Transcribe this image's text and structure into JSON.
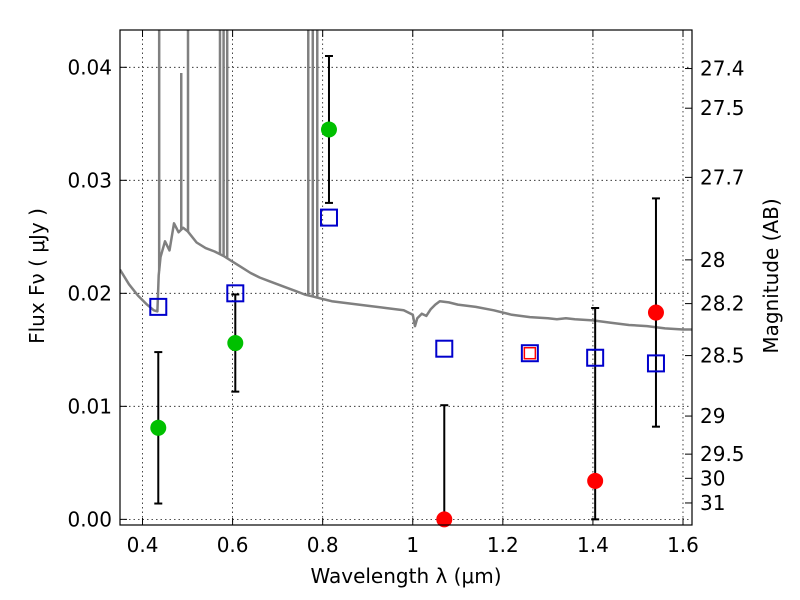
{
  "chart_data": {
    "type": "scatter",
    "xlabel": "Wavelength  λ (μm)",
    "ylabel": "Flux  Fν  ( μJy )",
    "ylabel_right": "Magnitude (AB)",
    "xlim": [
      0.35,
      1.62
    ],
    "ylim": [
      -0.0005,
      0.0433
    ],
    "x_ticks": [
      0.4,
      0.6,
      0.8,
      1.0,
      1.2,
      1.4,
      1.6
    ],
    "x_tick_labels": [
      "0.4",
      "0.6",
      "0.8",
      "1",
      "1.2",
      "1.4",
      "1.6"
    ],
    "y_ticks": [
      0.0,
      0.01,
      0.02,
      0.03,
      0.04
    ],
    "y_tick_labels": [
      "0.00",
      "0.01",
      "0.02",
      "0.03",
      "0.04"
    ],
    "right_ticks": [
      {
        "label": "27.4",
        "flux": 0.03989
      },
      {
        "label": "27.5",
        "flux": 0.03638
      },
      {
        "label": "27.7",
        "flux": 0.03026
      },
      {
        "label": "28",
        "flux": 0.02296
      },
      {
        "label": "28.2",
        "flux": 0.01909
      },
      {
        "label": "28.5",
        "flux": 0.01449
      },
      {
        "label": "29",
        "flux": 0.00914
      },
      {
        "label": "29.5",
        "flux": 0.00577
      },
      {
        "label": "30",
        "flux": 0.00363
      },
      {
        "label": "31",
        "flux": 0.00145
      }
    ],
    "grid": true,
    "series": [
      {
        "marker": "circle-filled",
        "color": "#00c000",
        "points": [
          {
            "x": 0.435,
            "y": 0.0081,
            "err_low": 0.0067,
            "err_high": 0.0067
          },
          {
            "x": 0.606,
            "y": 0.0156,
            "err_low": 0.0043,
            "err_high": 0.0043
          },
          {
            "x": 0.814,
            "y": 0.0345,
            "err_low": 0.0065,
            "err_high": 0.0065
          }
        ]
      },
      {
        "marker": "circle-filled",
        "color": "#ff0000",
        "points": [
          {
            "x": 1.07,
            "y": 0.0,
            "err_low": 0.0,
            "err_high": 0.0101
          },
          {
            "x": 1.405,
            "y": 0.0034,
            "err_low": 0.0034,
            "err_high": 0.0153
          },
          {
            "x": 1.54,
            "y": 0.0183,
            "err_low": 0.0101,
            "err_high": 0.0101
          }
        ]
      },
      {
        "marker": "square-open",
        "color": "#0000cc",
        "points": [
          {
            "x": 0.435,
            "y": 0.0188
          },
          {
            "x": 0.606,
            "y": 0.02
          },
          {
            "x": 0.814,
            "y": 0.0267
          },
          {
            "x": 1.07,
            "y": 0.0151
          },
          {
            "x": 1.26,
            "y": 0.0147
          },
          {
            "x": 1.405,
            "y": 0.0143
          },
          {
            "x": 1.54,
            "y": 0.0138
          }
        ]
      },
      {
        "marker": "square-small",
        "color": "#ff0000",
        "points": [
          {
            "x": 1.26,
            "y": 0.0147
          }
        ]
      }
    ],
    "model_spectrum": {
      "color": "#808080",
      "points": [
        [
          0.35,
          0.0221
        ],
        [
          0.37,
          0.0208
        ],
        [
          0.39,
          0.0198
        ],
        [
          0.41,
          0.019
        ],
        [
          0.425,
          0.0185
        ],
        [
          0.433,
          0.0184
        ],
        [
          0.436,
          0.0216
        ],
        [
          0.44,
          0.0232
        ],
        [
          0.45,
          0.0246
        ],
        [
          0.46,
          0.0238
        ],
        [
          0.47,
          0.0262
        ],
        [
          0.48,
          0.0254
        ],
        [
          0.49,
          0.0258
        ],
        [
          0.5,
          0.0255
        ],
        [
          0.52,
          0.0245
        ],
        [
          0.54,
          0.024
        ],
        [
          0.56,
          0.0237
        ],
        [
          0.58,
          0.0233
        ],
        [
          0.6,
          0.0228
        ],
        [
          0.62,
          0.0223
        ],
        [
          0.64,
          0.0218
        ],
        [
          0.66,
          0.0214
        ],
        [
          0.68,
          0.0211
        ],
        [
          0.7,
          0.0208
        ],
        [
          0.72,
          0.0205
        ],
        [
          0.74,
          0.0202
        ],
        [
          0.76,
          0.0199
        ],
        [
          0.78,
          0.0197
        ],
        [
          0.8,
          0.0195
        ],
        [
          0.82,
          0.0193
        ],
        [
          0.86,
          0.0191
        ],
        [
          0.9,
          0.0189
        ],
        [
          0.94,
          0.0187
        ],
        [
          0.98,
          0.0185
        ],
        [
          1.0,
          0.0181
        ],
        [
          1.005,
          0.0171
        ],
        [
          1.01,
          0.0178
        ],
        [
          1.02,
          0.0182
        ],
        [
          1.03,
          0.018
        ],
        [
          1.04,
          0.0186
        ],
        [
          1.05,
          0.019
        ],
        [
          1.06,
          0.0193
        ],
        [
          1.08,
          0.0192
        ],
        [
          1.1,
          0.019
        ],
        [
          1.14,
          0.0188
        ],
        [
          1.18,
          0.0185
        ],
        [
          1.22,
          0.0181
        ],
        [
          1.26,
          0.0179
        ],
        [
          1.3,
          0.0178
        ],
        [
          1.32,
          0.0177
        ],
        [
          1.34,
          0.0178
        ],
        [
          1.36,
          0.0177
        ],
        [
          1.4,
          0.0176
        ],
        [
          1.44,
          0.0174
        ],
        [
          1.48,
          0.0172
        ],
        [
          1.52,
          0.0171
        ],
        [
          1.56,
          0.0169
        ],
        [
          1.6,
          0.0168
        ],
        [
          1.62,
          0.0168
        ]
      ],
      "emission_lines": [
        {
          "x": 0.437,
          "height": 0.0433
        },
        {
          "x": 0.486,
          "height": 0.0395
        },
        {
          "x": 0.501,
          "height": 0.0433
        },
        {
          "x": 0.572,
          "height": 0.0433
        },
        {
          "x": 0.58,
          "height": 0.0433
        },
        {
          "x": 0.588,
          "height": 0.0433
        },
        {
          "x": 0.768,
          "height": 0.0433
        },
        {
          "x": 0.778,
          "height": 0.0433
        },
        {
          "x": 0.788,
          "height": 0.0433
        }
      ]
    }
  }
}
